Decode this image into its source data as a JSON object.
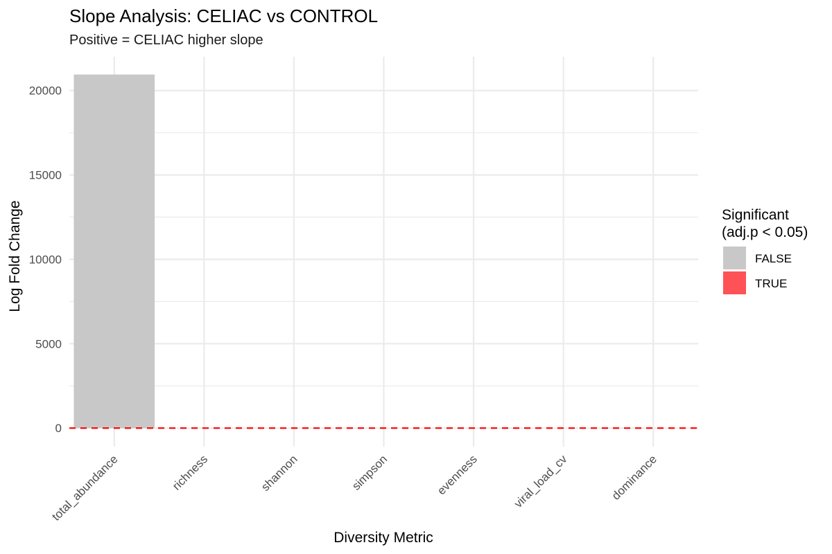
{
  "chart_data": {
    "type": "bar",
    "title": "Slope Analysis: CELIAC vs CONTROL",
    "subtitle": "Positive = CELIAC higher slope",
    "xlabel": "Diversity Metric",
    "ylabel": "Log Fold Change",
    "categories": [
      "total_abundance",
      "richness",
      "shannon",
      "simpson",
      "evenness",
      "viral_load_cv",
      "dominance"
    ],
    "values": [
      20950,
      0,
      0,
      0,
      0,
      0,
      0
    ],
    "significant": [
      false,
      false,
      false,
      false,
      false,
      false,
      false
    ],
    "ylim": [
      -1100,
      22000
    ],
    "yticks": [
      0,
      5000,
      10000,
      15000,
      20000
    ],
    "ytick_labels": [
      "0",
      "5000",
      "10000",
      "15000",
      "20000"
    ],
    "reference_line": {
      "y": 0,
      "style": "dashed",
      "color": "#ff0000"
    },
    "grid": true,
    "legend": {
      "title_line1": "Significant",
      "title_line2": "(adj.p < 0.05)",
      "placement": "right",
      "entries": [
        {
          "label": "FALSE",
          "color": "#c8c8c8"
        },
        {
          "label": "TRUE",
          "color": "#ff5257"
        }
      ]
    },
    "colors": {
      "bar_false": "#c8c8c8",
      "bar_true": "#ff5257",
      "grid": "#ebebeb"
    }
  }
}
